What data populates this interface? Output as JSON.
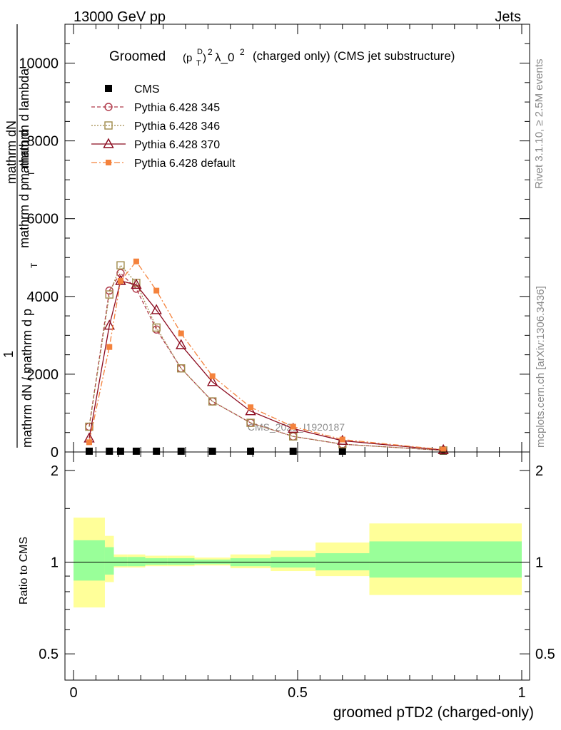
{
  "header": {
    "left": "13000 GeV pp",
    "right": "Jets"
  },
  "side": {
    "rivet": "Rivet 3.1.10, ≥ 2.5M events",
    "mcplots": "mcplots.cern.ch [arXiv:1306.3436]"
  },
  "watermark": "CMS_2021_I1920187",
  "colors": {
    "cms": "#000000",
    "p345": "#b03a4a",
    "p346": "#a08a4a",
    "p370": "#8b0a1e",
    "pdef": "#f4823c",
    "band_inner": "#99ff99",
    "band_outer": "#ffff99"
  },
  "chart_data": [
    {
      "type": "line",
      "title": "Groomed (p_T^D)^2 λ_0^2  (charged only) (CMS jet substructure)",
      "title_parts": {
        "pre": "Groomed",
        "ptd": "(p",
        "t": "T",
        "d": "D",
        "close": ")",
        "sq": "2",
        "lambda": "λ_0",
        "sq2": "2",
        "rest": "(charged only) (CMS jet substructure)"
      },
      "ylabel_top": "mathrm d",
      "ylabel_parts": [
        "1",
        "mathrm dN / mathrm d p",
        "T",
        "mathrm dN",
        "mathrm d p",
        "T",
        "mathrm d lambda"
      ],
      "ylim": [
        0,
        11000
      ],
      "yticks": [
        0,
        2000,
        4000,
        6000,
        8000,
        10000
      ],
      "ytick_labels": [
        "0",
        "2000",
        "4000",
        "6000",
        "8000",
        "10000"
      ],
      "xlim": [
        0,
        1
      ],
      "legend": [
        "CMS",
        "Pythia 6.428 345",
        "Pythia 6.428 346",
        "Pythia 6.428 370",
        "Pythia 6.428 default"
      ],
      "legend_position": "top-left",
      "series": [
        {
          "name": "CMS",
          "marker": "filled-square",
          "x": [
            0.035,
            0.08,
            0.105,
            0.14,
            0.185,
            0.24,
            0.31,
            0.395,
            0.49,
            0.6,
            0.825
          ],
          "y": [
            20,
            20,
            20,
            20,
            20,
            20,
            20,
            20,
            20,
            20,
            20
          ]
        },
        {
          "name": "Pythia 6.428 345",
          "marker": "open-circle",
          "x": [
            0.035,
            0.08,
            0.105,
            0.14,
            0.185,
            0.24,
            0.31,
            0.395,
            0.49,
            0.6,
            0.825
          ],
          "y": [
            650,
            4150,
            4600,
            4200,
            3150,
            2150,
            1300,
            750,
            400,
            200,
            40
          ]
        },
        {
          "name": "Pythia 6.428 346",
          "marker": "open-square",
          "x": [
            0.035,
            0.08,
            0.105,
            0.14,
            0.185,
            0.24,
            0.31,
            0.395,
            0.49,
            0.6,
            0.825
          ],
          "y": [
            650,
            4050,
            4800,
            4350,
            3200,
            2150,
            1300,
            750,
            400,
            200,
            40
          ]
        },
        {
          "name": "Pythia 6.428 370",
          "marker": "open-triangle",
          "x": [
            0.035,
            0.08,
            0.105,
            0.14,
            0.185,
            0.24,
            0.31,
            0.395,
            0.49,
            0.6,
            0.825
          ],
          "y": [
            350,
            3250,
            4400,
            4300,
            3650,
            2750,
            1800,
            1050,
            600,
            290,
            50
          ]
        },
        {
          "name": "Pythia 6.428 default",
          "marker": "filled-small-square",
          "x": [
            0.035,
            0.08,
            0.105,
            0.14,
            0.185,
            0.24,
            0.31,
            0.395,
            0.49,
            0.6,
            0.825
          ],
          "y": [
            250,
            2700,
            4400,
            4900,
            4150,
            3050,
            1950,
            1150,
            650,
            320,
            60
          ]
        }
      ]
    },
    {
      "type": "area",
      "ylabel": "Ratio to CMS",
      "xlabel": "groomed pTD2 (charged-only)",
      "log_y": true,
      "ylim": [
        0.41,
        2.3
      ],
      "yticks": [
        0.5,
        1,
        2
      ],
      "ytick_labels": [
        "0.5",
        "1",
        "2"
      ],
      "xlim": [
        0,
        1
      ],
      "xticks": [
        0,
        0.5,
        1
      ],
      "xtick_labels": [
        "0",
        "0.5",
        "1"
      ],
      "bins": [
        {
          "x0": 0.0,
          "x1": 0.07,
          "inner": [
            0.87,
            1.18
          ],
          "outer": [
            0.71,
            1.4
          ]
        },
        {
          "x0": 0.07,
          "x1": 0.09,
          "inner": [
            0.91,
            1.12
          ],
          "outer": [
            0.86,
            1.22
          ]
        },
        {
          "x0": 0.09,
          "x1": 0.12,
          "inner": [
            0.97,
            1.04
          ],
          "outer": [
            0.96,
            1.06
          ]
        },
        {
          "x0": 0.12,
          "x1": 0.16,
          "inner": [
            0.97,
            1.04
          ],
          "outer": [
            0.96,
            1.06
          ]
        },
        {
          "x0": 0.16,
          "x1": 0.21,
          "inner": [
            0.98,
            1.03
          ],
          "outer": [
            0.97,
            1.05
          ]
        },
        {
          "x0": 0.21,
          "x1": 0.27,
          "inner": [
            0.98,
            1.03
          ],
          "outer": [
            0.97,
            1.05
          ]
        },
        {
          "x0": 0.27,
          "x1": 0.35,
          "inner": [
            0.985,
            1.02
          ],
          "outer": [
            0.975,
            1.035
          ]
        },
        {
          "x0": 0.35,
          "x1": 0.44,
          "inner": [
            0.97,
            1.03
          ],
          "outer": [
            0.955,
            1.06
          ]
        },
        {
          "x0": 0.44,
          "x1": 0.54,
          "inner": [
            0.96,
            1.04
          ],
          "outer": [
            0.935,
            1.09
          ]
        },
        {
          "x0": 0.54,
          "x1": 0.66,
          "inner": [
            0.94,
            1.07
          ],
          "outer": [
            0.9,
            1.16
          ]
        },
        {
          "x0": 0.66,
          "x1": 1.0,
          "inner": [
            0.89,
            1.17
          ],
          "outer": [
            0.78,
            1.34
          ]
        }
      ]
    }
  ]
}
